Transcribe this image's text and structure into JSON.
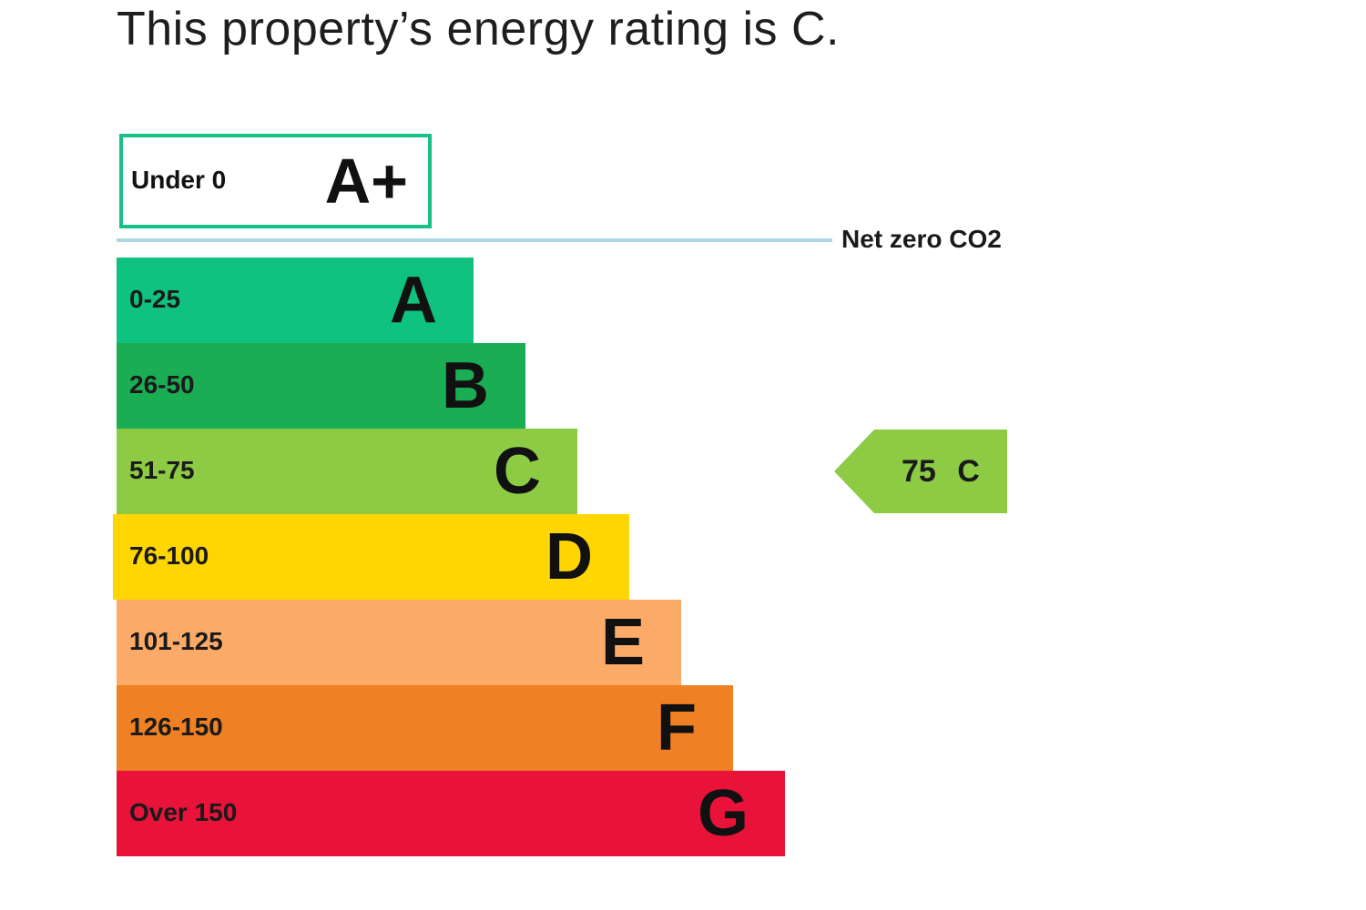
{
  "headline": "This property’s energy rating is C.",
  "chart_data": {
    "type": "bar",
    "title": "",
    "top_band": {
      "range": "Under 0",
      "letter": "A+",
      "color": "#17c087"
    },
    "net_zero_label": "Net zero CO2",
    "bands": [
      {
        "range": "0-25",
        "letter": "A",
        "color": "#0fc27f"
      },
      {
        "range": "26-50",
        "letter": "B",
        "color": "#1bad54"
      },
      {
        "range": "51-75",
        "letter": "C",
        "color": "#8dcb45"
      },
      {
        "range": "76-100",
        "letter": "D",
        "color": "#ffd502"
      },
      {
        "range": "101-125",
        "letter": "E",
        "color": "#fbab67"
      },
      {
        "range": "126-150",
        "letter": "F",
        "color": "#ef8023"
      },
      {
        "range": "Over 150",
        "letter": "G",
        "color": "#e9133a"
      }
    ],
    "current_rating": {
      "score": "75",
      "letter": "C",
      "color": "#8dcb45"
    }
  }
}
